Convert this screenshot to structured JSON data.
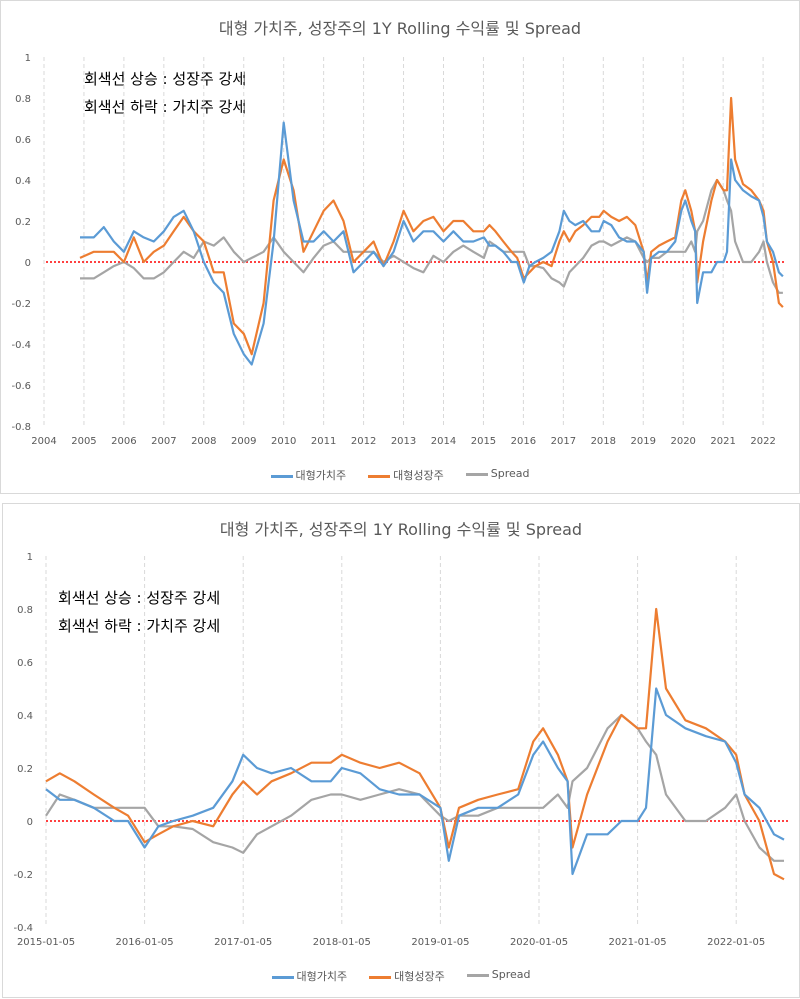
{
  "colors": {
    "value": "#5b9bd5",
    "growth": "#ed7d31",
    "spread": "#a5a5a5",
    "zero_line": "#ff0000",
    "grid": "#d9d9d9"
  },
  "chart_data": [
    {
      "type": "line",
      "title": "대형 가치주, 성장주의 1Y Rolling 수익률 및 Spread",
      "annotations": [
        "회색선 상승 : 성장주 강세",
        "회색선 하락 : 가치주 강세"
      ],
      "xlabel": "",
      "ylabel": "",
      "ylim": [
        -0.8,
        1
      ],
      "y_ticks": [
        "1",
        "0.8",
        "0.6",
        "0.4",
        "0.2",
        "0",
        "-0.2",
        "-0.4",
        "-0.6",
        "-0.8"
      ],
      "x_ticks": [
        "2004",
        "2005",
        "2006",
        "2007",
        "2008",
        "2009",
        "2010",
        "2011",
        "2012",
        "2013",
        "2014",
        "2015",
        "2016",
        "2017",
        "2018",
        "2019",
        "2020",
        "2021",
        "2022"
      ],
      "grid": "vertical dashed",
      "legend": "bottom",
      "x": [
        "2004-11-25",
        "2005-04-01",
        "2005-07-01",
        "2005-10-01",
        "2006-01-01",
        "2006-04-01",
        "2006-07-01",
        "2006-10-01",
        "2007-01-01",
        "2007-04-01",
        "2007-07-01",
        "2007-10-01",
        "2008-01-01",
        "2008-04-01",
        "2008-07-01",
        "2008-10-01",
        "2009-01-01",
        "2009-03-15",
        "2009-07-01",
        "2009-10-01",
        "2010-01-01",
        "2010-04-01",
        "2010-07-01",
        "2010-10-01",
        "2011-01-01",
        "2011-04-01",
        "2011-07-01",
        "2011-10-01",
        "2012-01-01",
        "2012-04-01",
        "2012-07-01",
        "2012-10-01",
        "2013-01-01",
        "2013-04-01",
        "2013-07-01",
        "2013-10-01",
        "2014-01-01",
        "2014-04-01",
        "2014-07-01",
        "2014-10-01",
        "2015-01-05",
        "2015-02-25",
        "2015-04-20",
        "2015-07-01",
        "2015-09-15",
        "2015-11-05",
        "2016-01-05",
        "2016-02-25",
        "2016-04-20",
        "2016-07-01",
        "2016-09-15",
        "2016-11-25",
        "2017-01-05",
        "2017-02-25",
        "2017-04-20",
        "2017-07-01",
        "2017-09-15",
        "2017-11-25",
        "2018-01-05",
        "2018-03-15",
        "2018-05-25",
        "2018-08-05",
        "2018-10-20",
        "2019-01-05",
        "2019-02-05",
        "2019-03-15",
        "2019-05-25",
        "2019-08-05",
        "2019-10-20",
        "2019-12-15",
        "2020-01-20",
        "2020-03-15",
        "2020-04-20",
        "2020-05-08",
        "2020-07-01",
        "2020-09-15",
        "2020-11-05",
        "2021-01-05",
        "2021-02-05",
        "2021-03-15",
        "2021-04-20",
        "2021-07-01",
        "2021-09-15",
        "2021-11-25",
        "2022-01-05",
        "2022-02-05",
        "2022-04-01",
        "2022-05-25",
        "2022-07-01"
      ],
      "series": [
        {
          "name": "대형가치주",
          "values": [
            0.12,
            0.12,
            0.17,
            0.1,
            0.05,
            0.15,
            0.12,
            0.1,
            0.15,
            0.22,
            0.25,
            0.15,
            0.0,
            -0.1,
            -0.15,
            -0.35,
            -0.45,
            -0.5,
            -0.3,
            0.1,
            0.68,
            0.3,
            0.1,
            0.1,
            0.15,
            0.1,
            0.15,
            -0.05,
            0.0,
            0.05,
            -0.02,
            0.05,
            0.2,
            0.1,
            0.15,
            0.15,
            0.1,
            0.15,
            0.1,
            0.1,
            0.12,
            0.08,
            0.08,
            0.05,
            0.0,
            0.0,
            -0.1,
            -0.02,
            0.0,
            0.02,
            0.05,
            0.15,
            0.25,
            0.2,
            0.18,
            0.2,
            0.15,
            0.15,
            0.2,
            0.18,
            0.12,
            0.1,
            0.1,
            0.05,
            -0.15,
            0.02,
            0.05,
            0.05,
            0.1,
            0.25,
            0.3,
            0.2,
            0.15,
            -0.2,
            -0.05,
            -0.05,
            0.0,
            0.0,
            0.05,
            0.5,
            0.4,
            0.35,
            0.32,
            0.3,
            0.22,
            0.1,
            0.05,
            -0.05,
            -0.07
          ]
        },
        {
          "name": "대형성장주",
          "values": [
            0.02,
            0.05,
            0.05,
            0.05,
            0.0,
            0.12,
            0.0,
            0.05,
            0.08,
            0.15,
            0.22,
            0.15,
            0.1,
            -0.05,
            -0.05,
            -0.3,
            -0.35,
            -0.45,
            -0.2,
            0.3,
            0.5,
            0.35,
            0.05,
            0.15,
            0.25,
            0.3,
            0.2,
            0.0,
            0.05,
            0.1,
            -0.02,
            0.1,
            0.25,
            0.15,
            0.2,
            0.22,
            0.15,
            0.2,
            0.2,
            0.15,
            0.15,
            0.18,
            0.15,
            0.1,
            0.05,
            0.02,
            -0.08,
            -0.05,
            -0.02,
            0.0,
            -0.02,
            0.1,
            0.15,
            0.1,
            0.15,
            0.18,
            0.22,
            0.22,
            0.25,
            0.22,
            0.2,
            0.22,
            0.18,
            0.05,
            -0.1,
            0.05,
            0.08,
            0.1,
            0.12,
            0.3,
            0.35,
            0.25,
            0.15,
            -0.1,
            0.1,
            0.3,
            0.4,
            0.35,
            0.35,
            0.8,
            0.5,
            0.38,
            0.35,
            0.3,
            0.25,
            0.1,
            0.0,
            -0.2,
            -0.22
          ]
        },
        {
          "name": "Spread",
          "values": [
            -0.08,
            -0.08,
            -0.05,
            -0.02,
            0.0,
            -0.03,
            -0.08,
            -0.08,
            -0.05,
            0.0,
            0.05,
            0.02,
            0.1,
            0.08,
            0.12,
            0.05,
            0.0,
            0.02,
            0.05,
            0.12,
            0.05,
            0.0,
            -0.05,
            0.02,
            0.08,
            0.1,
            0.05,
            0.05,
            0.05,
            0.05,
            0.0,
            0.03,
            0.0,
            -0.03,
            -0.05,
            0.03,
            0.0,
            0.05,
            0.08,
            0.05,
            0.02,
            0.1,
            0.08,
            0.05,
            0.05,
            0.05,
            0.05,
            -0.02,
            -0.02,
            -0.03,
            -0.08,
            -0.1,
            -0.12,
            -0.05,
            -0.02,
            0.02,
            0.08,
            0.1,
            0.1,
            0.08,
            0.1,
            0.12,
            0.1,
            0.02,
            0.0,
            0.02,
            0.02,
            0.05,
            0.05,
            0.05,
            0.05,
            0.1,
            0.05,
            0.15,
            0.2,
            0.35,
            0.4,
            0.35,
            0.3,
            0.25,
            0.1,
            0.0,
            0.0,
            0.05,
            0.1,
            0.0,
            -0.1,
            -0.15,
            -0.15
          ]
        }
      ]
    },
    {
      "type": "line",
      "title": "대형 가치주, 성장주의 1Y Rolling 수익률 및 Spread",
      "annotations": [
        "회색선 상승 : 성장주 강세",
        "회색선 하락 : 가치주 강세"
      ],
      "xlabel": "",
      "ylabel": "",
      "ylim": [
        -0.4,
        1
      ],
      "y_ticks": [
        "1",
        "0.8",
        "0.6",
        "0.4",
        "0.2",
        "0",
        "-0.2",
        "-0.4"
      ],
      "x_ticks": [
        "2015-01-05",
        "2016-01-05",
        "2017-01-05",
        "2018-01-05",
        "2019-01-05",
        "2020-01-05",
        "2021-01-05",
        "2022-01-05"
      ],
      "grid": "vertical dashed",
      "legend": "bottom",
      "x_from": "2015-01-05"
    }
  ],
  "legend": [
    "대형가치주",
    "대형성장주",
    "Spread"
  ]
}
